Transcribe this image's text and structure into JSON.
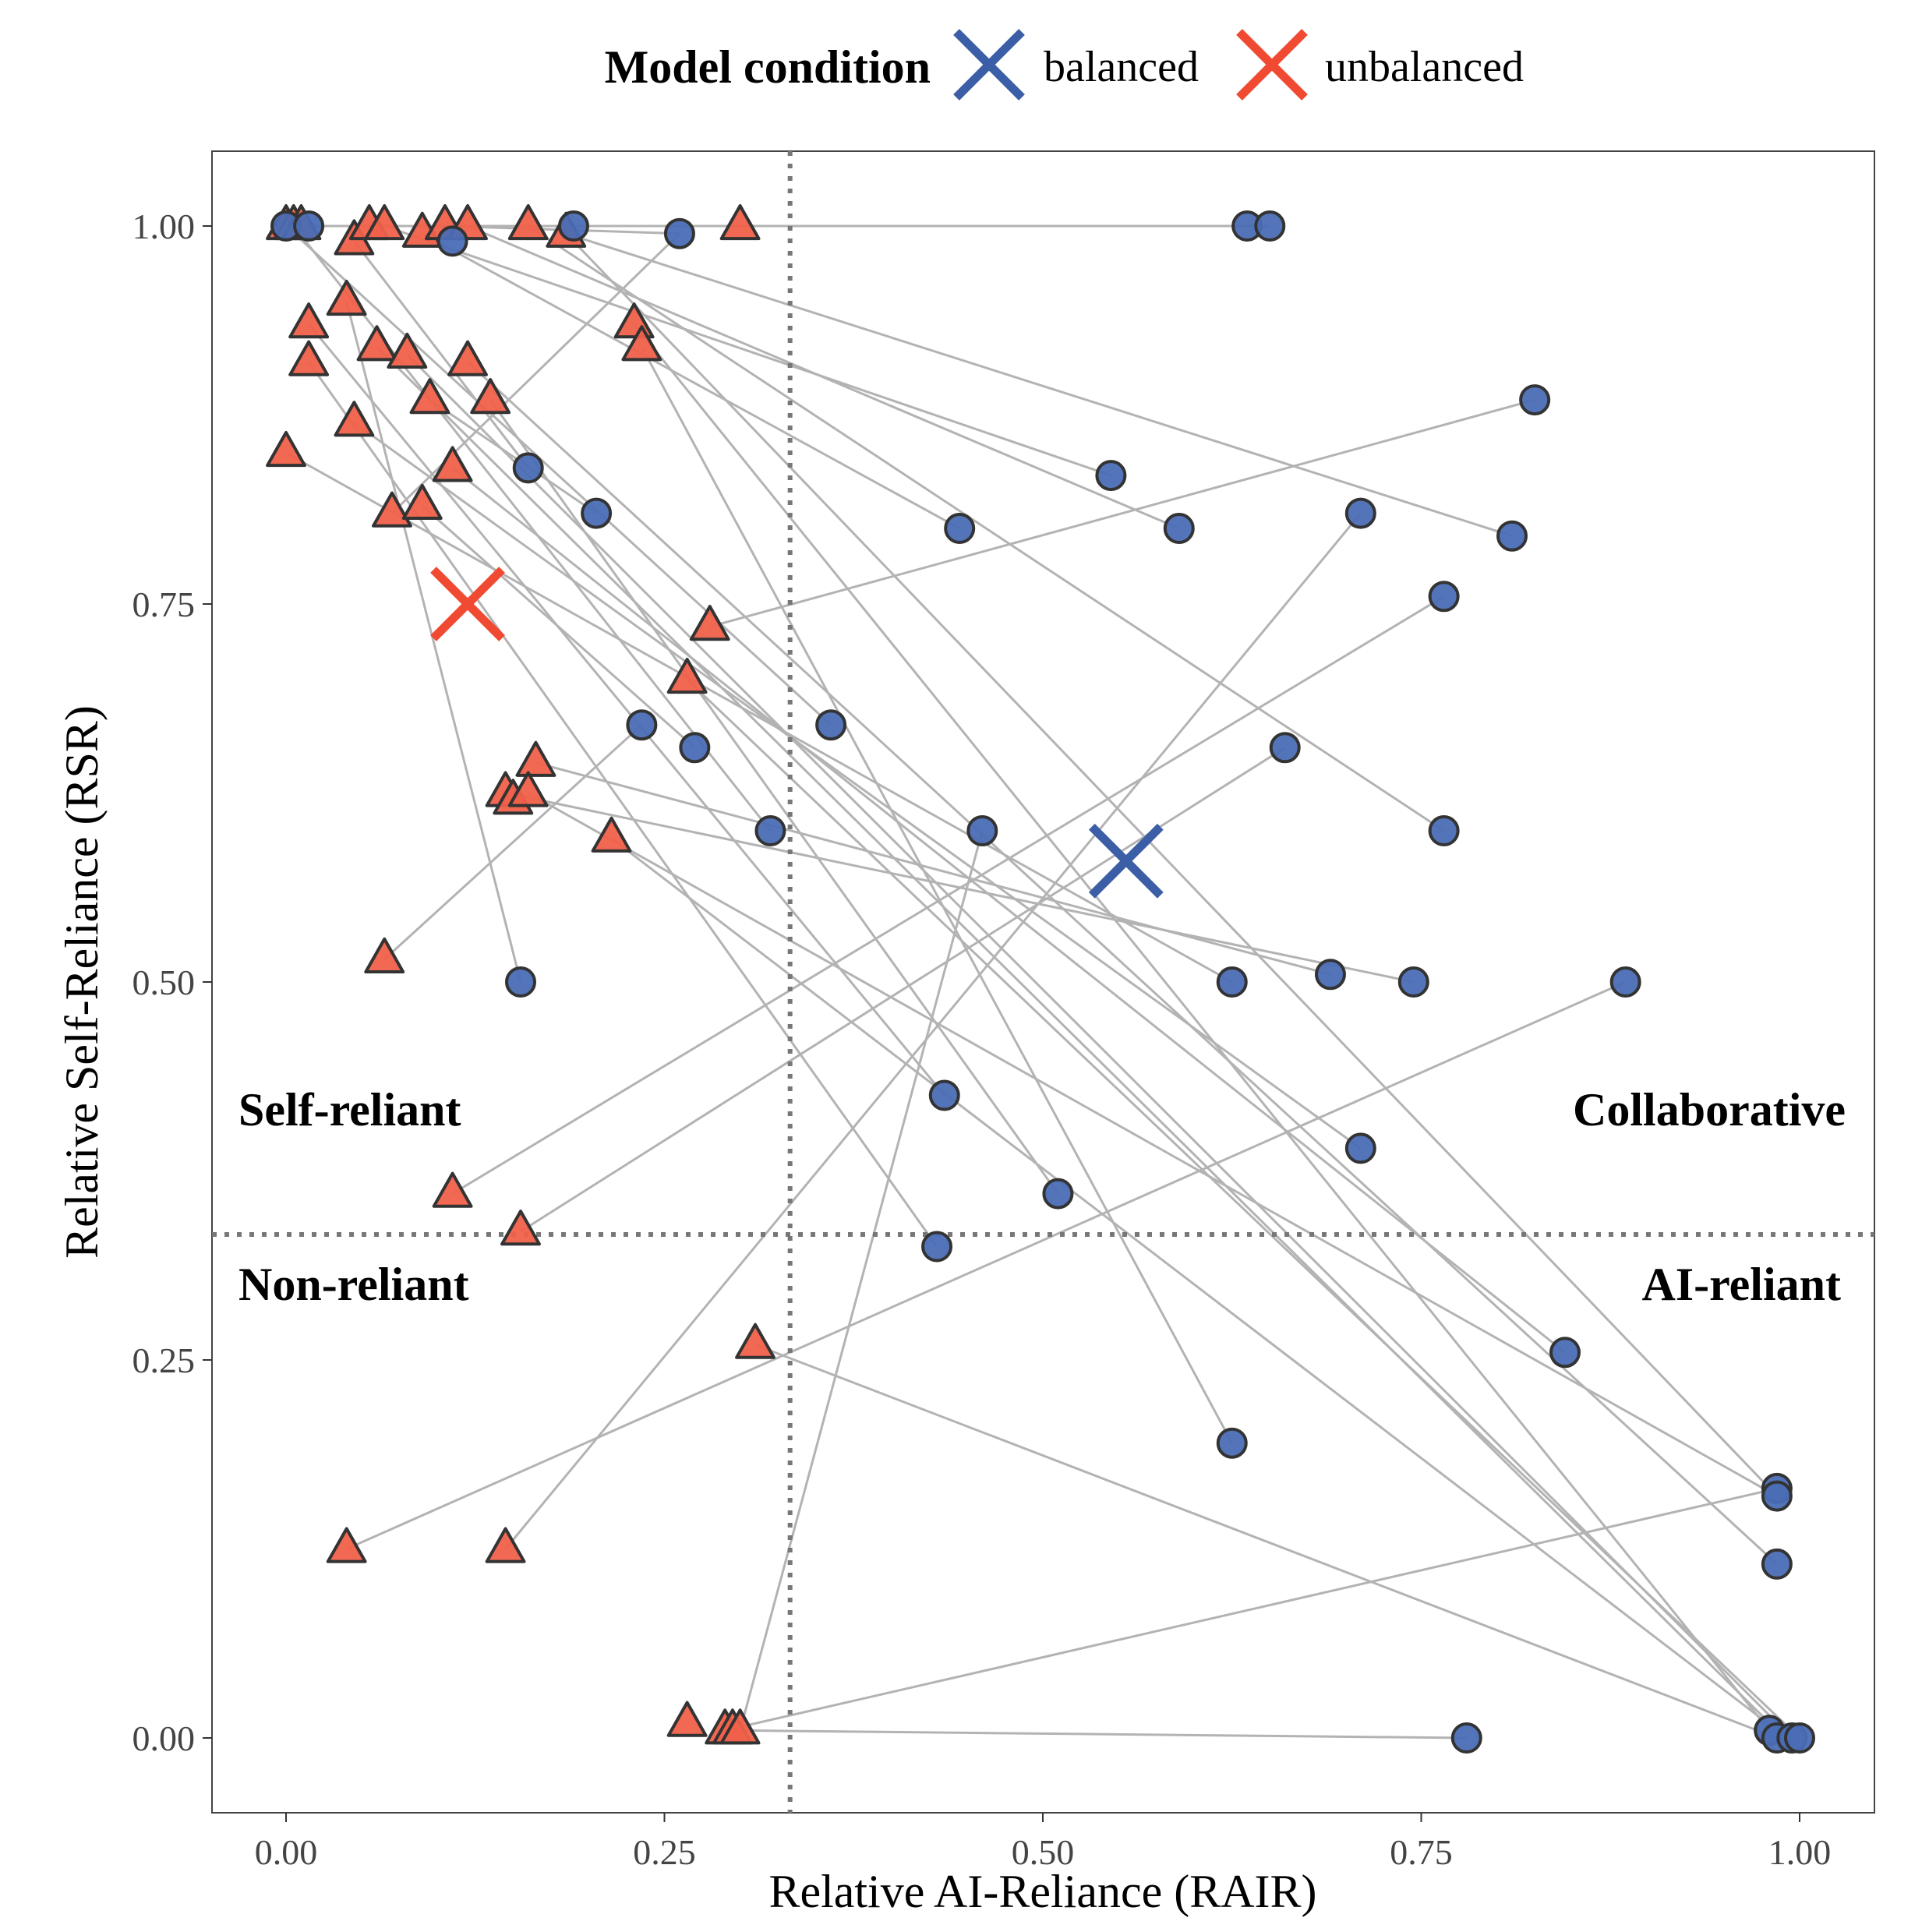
{
  "chart_data": {
    "type": "scatter",
    "xlabel": "Relative AI-Reliance (RAIR)",
    "ylabel": "Relative Self-Reliance (RSR)",
    "xlim": [
      -0.05,
      1.05
    ],
    "ylim": [
      -0.05,
      1.05
    ],
    "x_ticks": [
      0.0,
      0.25,
      0.5,
      0.75,
      1.0
    ],
    "x_tick_labels": [
      "0.00",
      "0.25",
      "0.50",
      "0.75",
      "1.00"
    ],
    "y_ticks": [
      0.0,
      0.25,
      0.5,
      0.75,
      1.0
    ],
    "y_tick_labels": [
      "0.00",
      "0.25",
      "0.50",
      "0.75",
      "1.00"
    ],
    "grid": false,
    "legend": {
      "title": "Model condition",
      "position": "top",
      "items": [
        {
          "name": "balanced",
          "color": "#3b5ea6"
        },
        {
          "name": "unbalanced",
          "color": "#f04a32"
        }
      ]
    },
    "thresholds": {
      "x": 0.333,
      "y": 0.333
    },
    "quadrant_labels": {
      "top_left": "Self-reliant",
      "top_right": "Collaborative",
      "bottom_left": "Non-reliant",
      "bottom_right": "AI-reliant"
    },
    "colors": {
      "balanced_fill": "#4a6db5",
      "unbalanced_fill": "#f0604a",
      "marker_stroke": "#333333",
      "line": "#b3b3b3",
      "threshold": "#777777"
    },
    "series": [
      {
        "name": "unbalanced",
        "marker": "triangle",
        "mean": [
          0.12,
          0.75
        ],
        "points": [
          [
            0.0,
            1.0
          ],
          [
            0.005,
            1.0
          ],
          [
            0.01,
            1.0
          ],
          [
            0.045,
            0.99
          ],
          [
            0.055,
            1.0
          ],
          [
            0.065,
            1.0
          ],
          [
            0.09,
            0.995
          ],
          [
            0.105,
            1.0
          ],
          [
            0.12,
            1.0
          ],
          [
            0.16,
            1.0
          ],
          [
            0.185,
            0.995
          ],
          [
            0.3,
            1.0
          ],
          [
            0.04,
            0.95
          ],
          [
            0.015,
            0.935
          ],
          [
            0.015,
            0.91
          ],
          [
            0.06,
            0.92
          ],
          [
            0.08,
            0.915
          ],
          [
            0.12,
            0.91
          ],
          [
            0.095,
            0.885
          ],
          [
            0.135,
            0.885
          ],
          [
            0.045,
            0.87
          ],
          [
            0.0,
            0.85
          ],
          [
            0.11,
            0.84
          ],
          [
            0.07,
            0.81
          ],
          [
            0.09,
            0.815
          ],
          [
            0.23,
            0.935
          ],
          [
            0.235,
            0.92
          ],
          [
            0.28,
            0.735
          ],
          [
            0.265,
            0.7
          ],
          [
            0.165,
            0.645
          ],
          [
            0.145,
            0.625
          ],
          [
            0.15,
            0.62
          ],
          [
            0.16,
            0.625
          ],
          [
            0.215,
            0.595
          ],
          [
            0.065,
            0.515
          ],
          [
            0.11,
            0.36
          ],
          [
            0.155,
            0.335
          ],
          [
            0.31,
            0.26
          ],
          [
            0.04,
            0.125
          ],
          [
            0.145,
            0.125
          ],
          [
            0.265,
            0.01
          ],
          [
            0.29,
            0.005
          ],
          [
            0.295,
            0.005
          ],
          [
            0.3,
            0.005
          ]
        ]
      },
      {
        "name": "balanced",
        "marker": "circle",
        "mean": [
          0.555,
          0.58
        ],
        "points": [
          [
            0.0,
            1.0
          ],
          [
            0.015,
            1.0
          ],
          [
            0.11,
            0.99
          ],
          [
            0.19,
            1.0
          ],
          [
            0.26,
            0.995
          ],
          [
            0.635,
            1.0
          ],
          [
            0.65,
            1.0
          ],
          [
            0.825,
            0.885
          ],
          [
            0.16,
            0.84
          ],
          [
            0.545,
            0.835
          ],
          [
            0.205,
            0.81
          ],
          [
            0.445,
            0.8
          ],
          [
            0.59,
            0.8
          ],
          [
            0.71,
            0.81
          ],
          [
            0.81,
            0.795
          ],
          [
            0.765,
            0.755
          ],
          [
            0.235,
            0.67
          ],
          [
            0.36,
            0.67
          ],
          [
            0.27,
            0.655
          ],
          [
            0.66,
            0.655
          ],
          [
            0.32,
            0.6
          ],
          [
            0.46,
            0.6
          ],
          [
            0.765,
            0.6
          ],
          [
            0.155,
            0.5
          ],
          [
            0.625,
            0.5
          ],
          [
            0.69,
            0.505
          ],
          [
            0.745,
            0.5
          ],
          [
            0.885,
            0.5
          ],
          [
            0.435,
            0.425
          ],
          [
            0.71,
            0.39
          ],
          [
            0.51,
            0.36
          ],
          [
            0.43,
            0.325
          ],
          [
            0.845,
            0.255
          ],
          [
            0.625,
            0.195
          ],
          [
            0.985,
            0.165
          ],
          [
            0.985,
            0.16
          ],
          [
            0.985,
            0.115
          ],
          [
            0.78,
            0.0
          ],
          [
            0.98,
            0.005
          ],
          [
            0.985,
            0.0
          ],
          [
            0.995,
            0.0
          ],
          [
            1.0,
            0.0
          ]
        ]
      }
    ],
    "pairs": [
      [
        [
          0.005,
          1.0
        ],
        [
          0.635,
          1.0
        ]
      ],
      [
        [
          0.01,
          1.0
        ],
        [
          0.65,
          1.0
        ]
      ],
      [
        [
          0.0,
          1.0
        ],
        [
          0.36,
          0.67
        ]
      ],
      [
        [
          0.005,
          1.0
        ],
        [
          0.32,
          0.6
        ]
      ],
      [
        [
          0.045,
          0.99
        ],
        [
          0.16,
          0.84
        ]
      ],
      [
        [
          0.065,
          1.0
        ],
        [
          0.545,
          0.835
        ]
      ],
      [
        [
          0.09,
          0.995
        ],
        [
          0.445,
          0.8
        ]
      ],
      [
        [
          0.12,
          1.0
        ],
        [
          0.59,
          0.8
        ]
      ],
      [
        [
          0.185,
          0.995
        ],
        [
          0.81,
          0.795
        ]
      ],
      [
        [
          0.16,
          1.0
        ],
        [
          0.765,
          0.6
        ]
      ],
      [
        [
          0.3,
          1.0
        ],
        [
          0.19,
          1.0
        ]
      ],
      [
        [
          0.105,
          1.0
        ],
        [
          0.26,
          0.995
        ]
      ],
      [
        [
          0.04,
          0.95
        ],
        [
          0.155,
          0.5
        ]
      ],
      [
        [
          0.015,
          0.935
        ],
        [
          0.435,
          0.425
        ]
      ],
      [
        [
          0.015,
          0.91
        ],
        [
          0.43,
          0.325
        ]
      ],
      [
        [
          0.06,
          0.92
        ],
        [
          0.985,
          0.005
        ]
      ],
      [
        [
          0.08,
          0.915
        ],
        [
          0.995,
          0.0
        ]
      ],
      [
        [
          0.12,
          0.91
        ],
        [
          0.985,
          0.115
        ]
      ],
      [
        [
          0.095,
          0.885
        ],
        [
          0.205,
          0.81
        ]
      ],
      [
        [
          0.135,
          0.885
        ],
        [
          0.51,
          0.36
        ]
      ],
      [
        [
          0.045,
          0.87
        ],
        [
          0.71,
          0.39
        ]
      ],
      [
        [
          0.0,
          0.85
        ],
        [
          0.625,
          0.5
        ]
      ],
      [
        [
          0.11,
          0.84
        ],
        [
          0.845,
          0.255
        ]
      ],
      [
        [
          0.07,
          0.81
        ],
        [
          0.26,
          0.995
        ]
      ],
      [
        [
          0.09,
          0.815
        ],
        [
          0.27,
          0.655
        ]
      ],
      [
        [
          0.23,
          0.935
        ],
        [
          0.98,
          0.005
        ]
      ],
      [
        [
          0.235,
          0.92
        ],
        [
          0.625,
          0.195
        ]
      ],
      [
        [
          0.28,
          0.735
        ],
        [
          0.825,
          0.885
        ]
      ],
      [
        [
          0.265,
          0.7
        ],
        [
          1.0,
          0.0
        ]
      ],
      [
        [
          0.165,
          0.645
        ],
        [
          0.69,
          0.505
        ]
      ],
      [
        [
          0.145,
          0.625
        ],
        [
          0.745,
          0.5
        ]
      ],
      [
        [
          0.16,
          0.625
        ],
        [
          0.985,
          0.16
        ]
      ],
      [
        [
          0.065,
          0.515
        ],
        [
          0.235,
          0.67
        ]
      ],
      [
        [
          0.11,
          0.36
        ],
        [
          0.765,
          0.755
        ]
      ],
      [
        [
          0.155,
          0.335
        ],
        [
          0.66,
          0.655
        ]
      ],
      [
        [
          0.31,
          0.26
        ],
        [
          0.985,
          0.0
        ]
      ],
      [
        [
          0.04,
          0.125
        ],
        [
          0.885,
          0.5
        ]
      ],
      [
        [
          0.145,
          0.125
        ],
        [
          0.71,
          0.81
        ]
      ],
      [
        [
          0.3,
          0.005
        ],
        [
          0.46,
          0.6
        ]
      ],
      [
        [
          0.29,
          0.005
        ],
        [
          0.985,
          0.165
        ]
      ],
      [
        [
          0.295,
          0.005
        ],
        [
          0.78,
          0.0
        ]
      ],
      [
        [
          0.185,
          0.995
        ],
        [
          0.985,
          0.16
        ]
      ],
      [
        [
          0.215,
          0.595
        ],
        [
          0.985,
          0.005
        ]
      ]
    ]
  }
}
